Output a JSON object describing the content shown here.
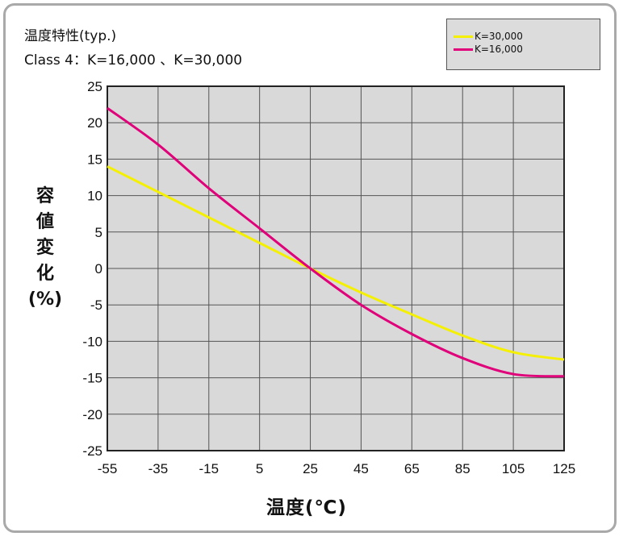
{
  "title": "温度特性(typ.)",
  "subtitle": "Class 4：K=16,000 、K=30,000",
  "chart_data": {
    "type": "line",
    "xlabel": "温度(℃)",
    "ylabel": [
      "容",
      "値",
      "変",
      "化",
      "(%)"
    ],
    "xlim": [
      -55,
      125
    ],
    "ylim": [
      -25,
      25
    ],
    "xticks": [
      -55,
      -35,
      -15,
      5,
      25,
      45,
      65,
      85,
      105,
      125
    ],
    "yticks": [
      25,
      20,
      15,
      10,
      5,
      0,
      -5,
      -10,
      -15,
      -20,
      -25
    ],
    "grid": true,
    "plot_background": "#d9d9d9",
    "legend_position": "top-right",
    "series": [
      {
        "name": "K=30,000",
        "color": "#f5f000",
        "x": [
          -55,
          -35,
          -15,
          5,
          25,
          45,
          65,
          85,
          105,
          125
        ],
        "y": [
          14,
          10.5,
          7,
          3.5,
          0,
          -3.3,
          -6.3,
          -9.2,
          -11.5,
          -12.5
        ]
      },
      {
        "name": "K=16,000",
        "color": "#e0007a",
        "x": [
          -55,
          -35,
          -15,
          5,
          25,
          45,
          65,
          85,
          105,
          125
        ],
        "y": [
          22,
          17,
          11,
          5.5,
          0,
          -5,
          -9,
          -12.3,
          -14.5,
          -14.8
        ]
      }
    ]
  }
}
